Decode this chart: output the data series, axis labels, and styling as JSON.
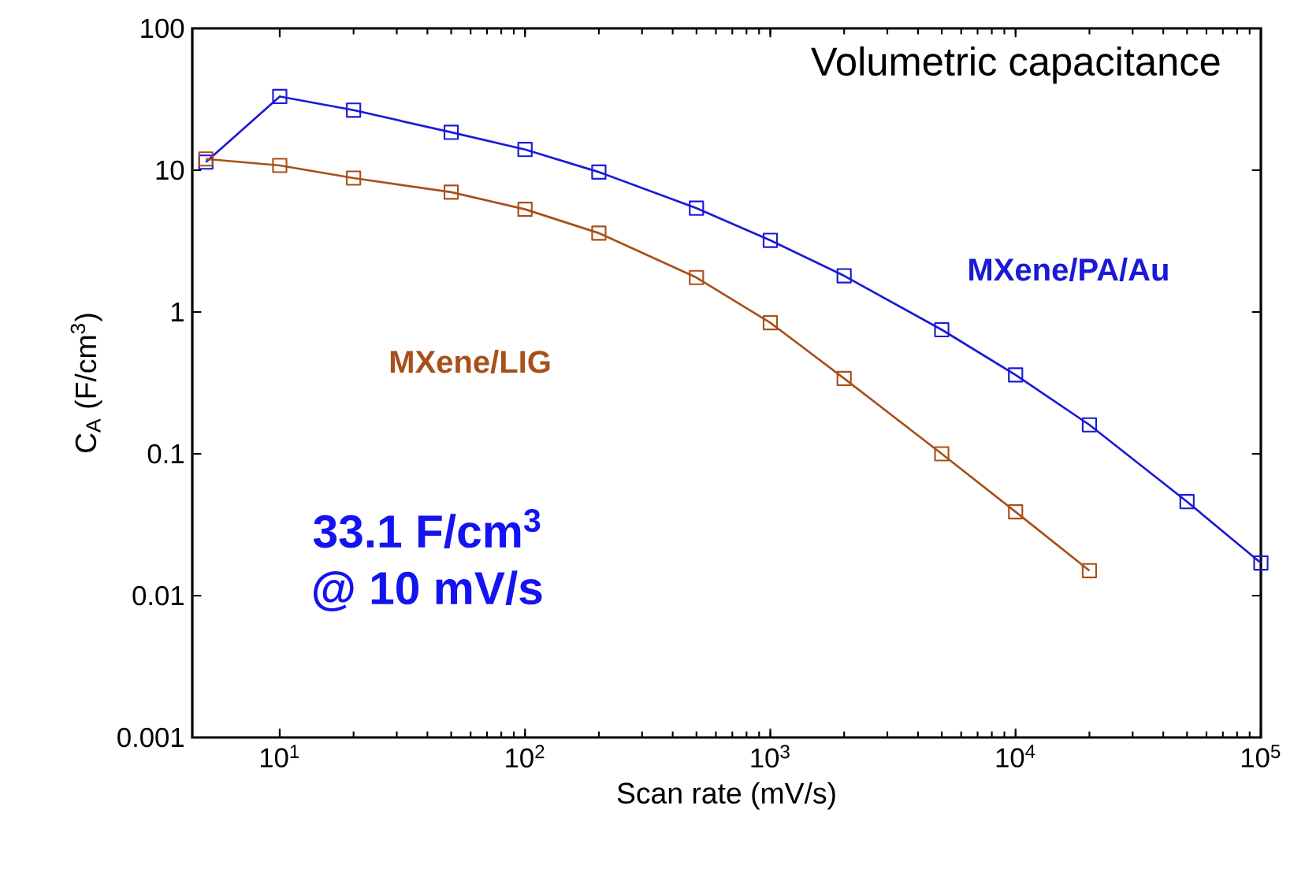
{
  "chart_data": {
    "type": "line",
    "title": "Volumetric capacitance",
    "xlabel": "Scan rate (mV/s)",
    "ylabel": "C$_{A}$ (F/cm$^{3}$)",
    "annotations": [
      "33.1 F/cm$^{3}$",
      "@ 10 mV/s"
    ],
    "log": "xy",
    "marker": "square",
    "line_style": "solid",
    "xlim": [
      4.4,
      100000
    ],
    "ylim": [
      0.001,
      100
    ],
    "xticks": [
      {
        "value": 10,
        "label": "10$^{1}$"
      },
      {
        "value": 100,
        "label": "10$^{2}$"
      },
      {
        "value": 1000,
        "label": "10$^{3}$"
      },
      {
        "value": 10000,
        "label": "10$^{4}$"
      },
      {
        "value": 100000,
        "label": "10$^{5}$"
      }
    ],
    "yticks": [
      0.001,
      0.01,
      0.1,
      1,
      10,
      100
    ],
    "series": [
      {
        "name": "MXene/PA/Au",
        "color": "#1a1ad6",
        "x": [
          5,
          10,
          20,
          50,
          100,
          200,
          500,
          1000,
          2000,
          5000,
          10000,
          20000,
          50000,
          100000
        ],
        "values": [
          11.4,
          33.1,
          26.5,
          18.5,
          14,
          9.7,
          5.4,
          3.2,
          1.8,
          0.75,
          0.36,
          0.16,
          0.046,
          0.017
        ]
      },
      {
        "name": "MXene/LIG",
        "color": "#a8501a",
        "x": [
          5,
          10,
          20,
          50,
          100,
          200,
          500,
          1000,
          2000,
          5000,
          10000,
          20000
        ],
        "values": [
          12,
          10.8,
          8.8,
          7,
          5.3,
          3.6,
          1.75,
          0.84,
          0.34,
          0.1,
          0.039,
          0.015
        ]
      }
    ]
  }
}
